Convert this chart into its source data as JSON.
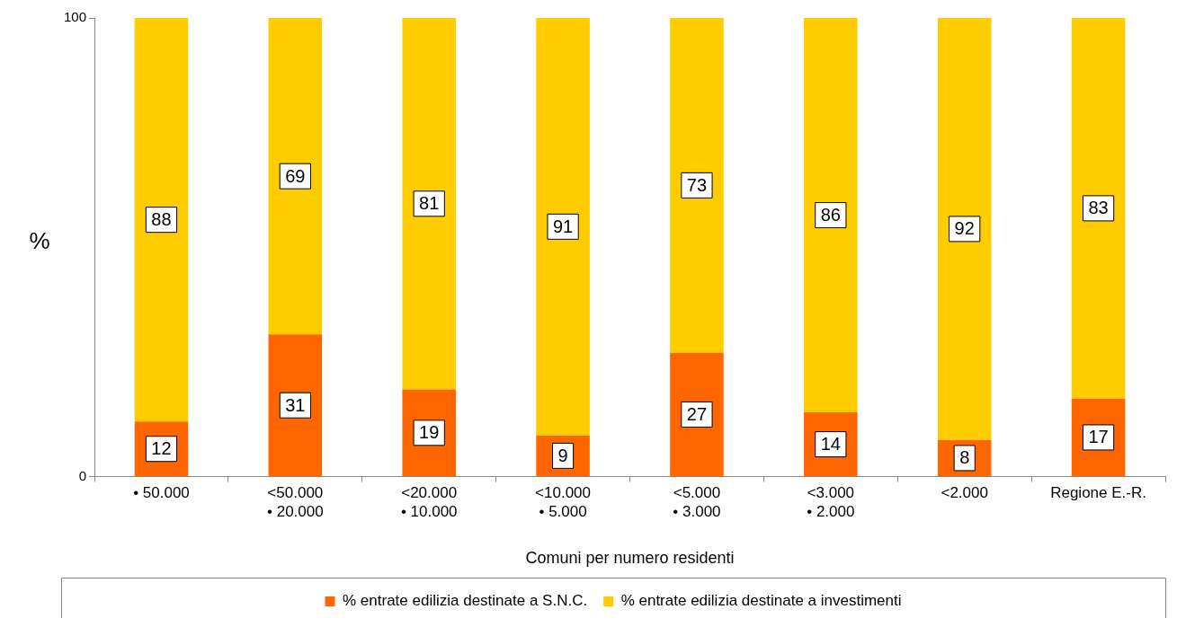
{
  "chart_data": {
    "type": "bar",
    "stacked": true,
    "xlabel": "Comuni per numero residenti",
    "ylabel": "%",
    "categories": [
      "• 50.000",
      "<50.000\n• 20.000",
      "<20.000\n• 10.000",
      "<10.000\n• 5.000",
      "<5.000\n• 3.000",
      "<3.000\n• 2.000",
      "<2.000",
      "Regione E.-R."
    ],
    "series": [
      {
        "name": "% entrate edilizia destinate a S.N.C.",
        "color": "#ff6600",
        "values": [
          12,
          31,
          19,
          9,
          27,
          14,
          8,
          17
        ]
      },
      {
        "name": "% entrate edilizia destinate a investimenti",
        "color": "#ffcc00",
        "values": [
          88,
          69,
          81,
          91,
          73,
          86,
          92,
          83
        ]
      }
    ],
    "ylim": [
      0,
      100
    ],
    "yticks": [
      0,
      100
    ],
    "grid": false,
    "legend": "bottom",
    "data_labels": true
  }
}
